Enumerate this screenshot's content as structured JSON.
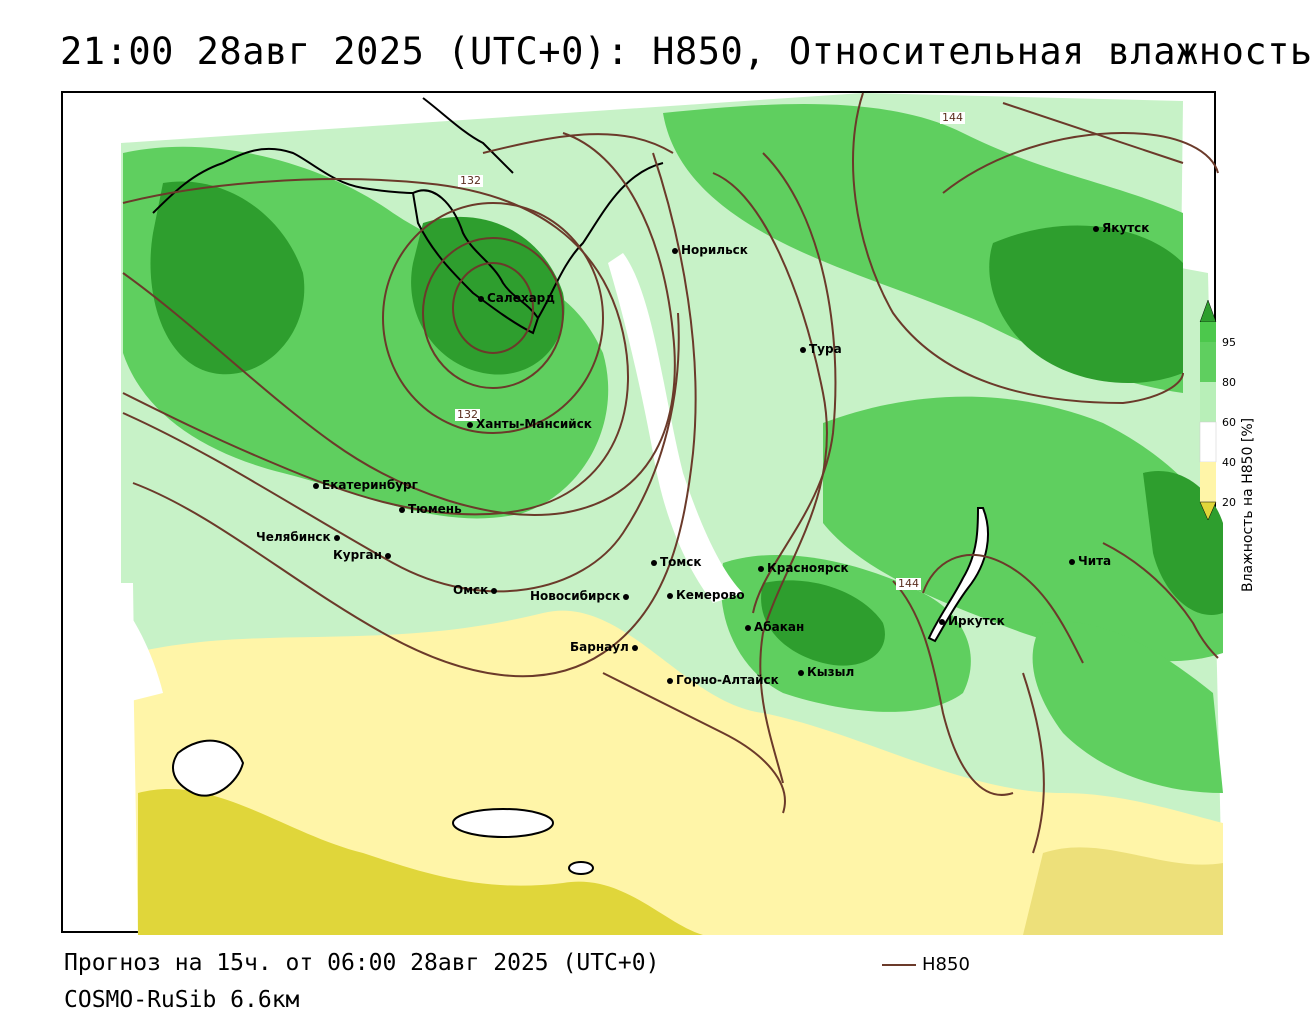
{
  "header": {
    "title": "21:00 28авг 2025 (UTC+0): H850, Относительная влажность"
  },
  "footer": {
    "forecast": "Прогноз на 15ч. от 06:00 28авг 2025 (UTC+0)",
    "model": "COSMO-RuSib 6.6км",
    "contour_key": "H850"
  },
  "legend": {
    "title": "Влажность на H850 [%]",
    "ticks": [
      "95",
      "80",
      "60",
      "40",
      "20"
    ],
    "colors": {
      "very_wet": "#2e9e2e",
      "wet": "#4cc84c",
      "moist": "#b8efb8",
      "neutral": "#ffffff",
      "dry": "#fff5a8",
      "very_dry": "#e0d63a"
    }
  },
  "contours": {
    "color": "#6b3a2a",
    "labels": [
      "132",
      "132",
      "144",
      "144"
    ]
  },
  "cities": [
    {
      "name": "Салехард"
    },
    {
      "name": "Норильск"
    },
    {
      "name": "Якутск"
    },
    {
      "name": "Тура"
    },
    {
      "name": "Ханты-Мансийск"
    },
    {
      "name": "Екатеринбург"
    },
    {
      "name": "Тюмень"
    },
    {
      "name": "Челябинск"
    },
    {
      "name": "Курган"
    },
    {
      "name": "Омск"
    },
    {
      "name": "Новосибирск"
    },
    {
      "name": "Томск"
    },
    {
      "name": "Кемерово"
    },
    {
      "name": "Красноярск"
    },
    {
      "name": "Абакан"
    },
    {
      "name": "Барнаул"
    },
    {
      "name": "Горно-Алтайск"
    },
    {
      "name": "Кызыл"
    },
    {
      "name": "Иркутск"
    },
    {
      "name": "Чита"
    }
  ]
}
